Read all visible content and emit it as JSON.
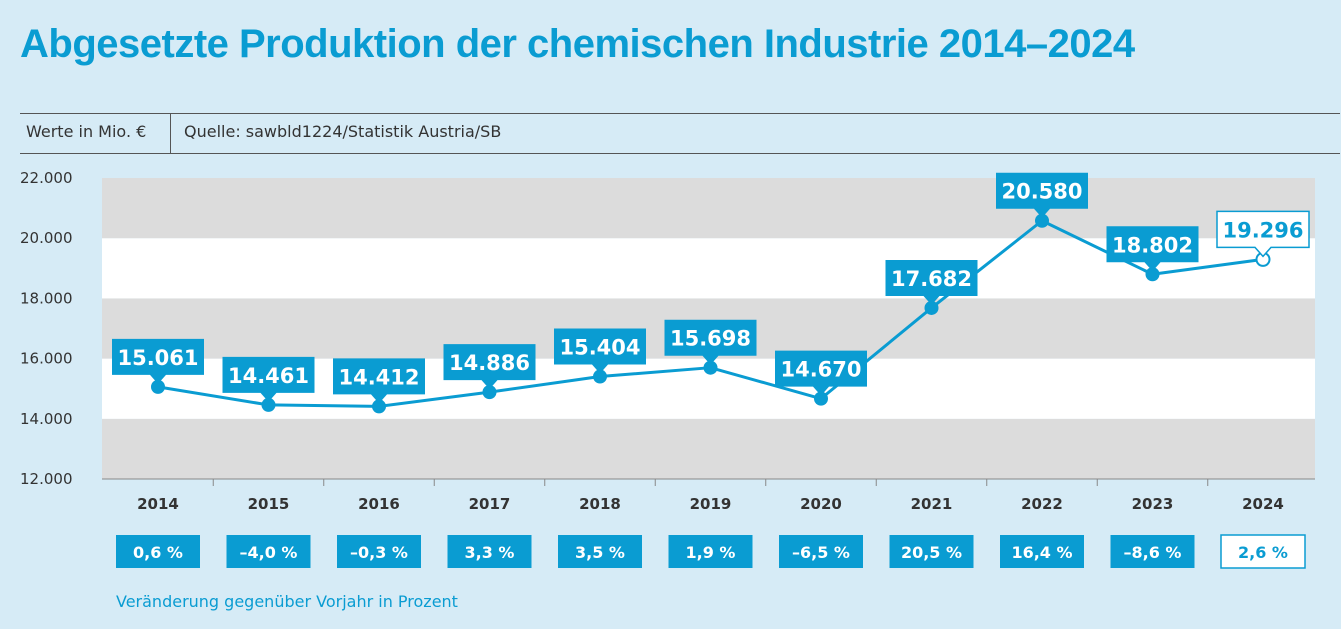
{
  "header": {
    "title": "Abgesetzte Produktion der chemischen Industrie 2014–2024",
    "units": "Werte in Mio. €",
    "source": "Quelle: sawbld1224/Statistik Austria/SB"
  },
  "footnote": "Veränderung gegenüber Vorjahr in Prozent",
  "colors": {
    "accent": "#0a9cd2",
    "background": "#d6ebf6",
    "band_grey": "#dcdcdc",
    "band_white": "#ffffff",
    "text": "#333333"
  },
  "chart_data": {
    "type": "line",
    "x": [
      "2014",
      "2015",
      "2016",
      "2017",
      "2018",
      "2019",
      "2020",
      "2021",
      "2022",
      "2023",
      "2024"
    ],
    "series": [
      {
        "values": [
          15061,
          14461,
          14412,
          14886,
          15404,
          15698,
          14670,
          17682,
          20580,
          18802,
          19296
        ]
      }
    ],
    "value_labels": [
      "15.061",
      "14.461",
      "14.412",
      "14.886",
      "15.404",
      "15.698",
      "14.670",
      "17.682",
      "20.580",
      "18.802",
      "19.296"
    ],
    "pct_change_labels": [
      "0,6 %",
      "–4,0 %",
      "–0,3 %",
      "3,3 %",
      "3,5 %",
      "1,9 %",
      "–6,5 %",
      "20,5 %",
      "16,4 %",
      "–8,6 %",
      "2,6 %"
    ],
    "last_point_open": true,
    "ylim": [
      12000,
      22000
    ],
    "yticks": [
      12000,
      14000,
      16000,
      18000,
      20000,
      22000
    ],
    "ytick_labels": [
      "12.000",
      "14.000",
      "16.000",
      "18.000",
      "20.000",
      "22.000"
    ],
    "grid": "alternating horizontal bands",
    "legend": "none"
  }
}
